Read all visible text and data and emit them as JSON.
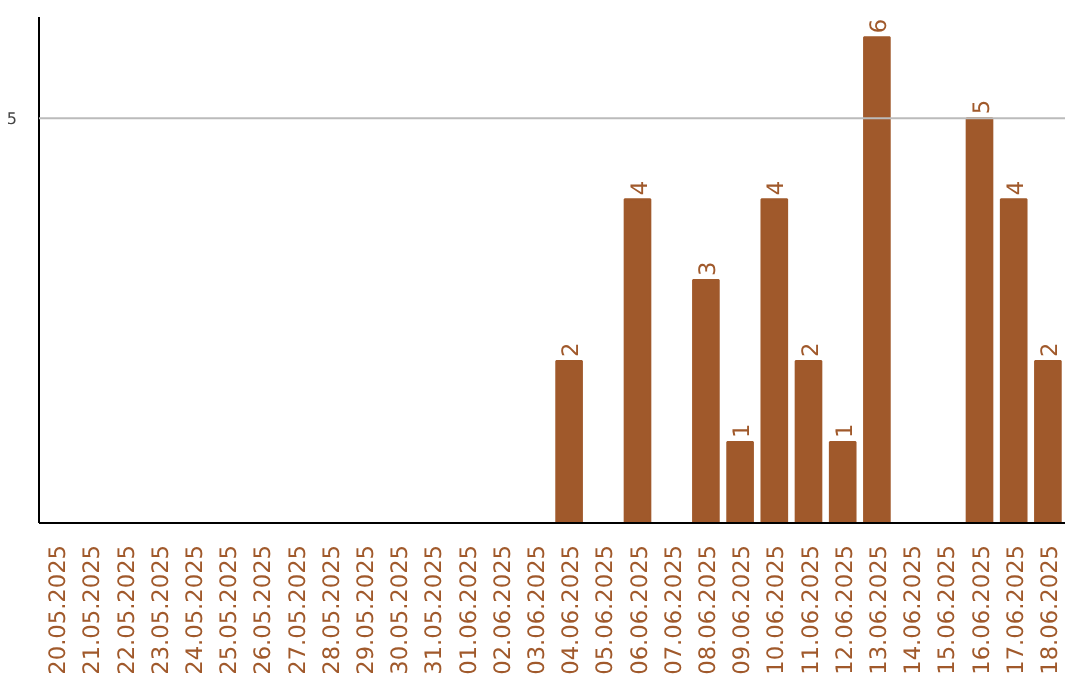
{
  "chart_data": {
    "type": "bar",
    "categories": [
      "20.05.2025",
      "21.05.2025",
      "22.05.2025",
      "23.05.2025",
      "24.05.2025",
      "25.05.2025",
      "26.05.2025",
      "27.05.2025",
      "28.05.2025",
      "29.05.2025",
      "30.05.2025",
      "31.05.2025",
      "01.06.2025",
      "02.06.2025",
      "03.06.2025",
      "04.06.2025",
      "05.06.2025",
      "06.06.2025",
      "07.06.2025",
      "08.06.2025",
      "09.06.2025",
      "10.06.2025",
      "11.06.2025",
      "12.06.2025",
      "13.06.2025",
      "14.06.2025",
      "15.06.2025",
      "16.06.2025",
      "17.06.2025",
      "18.06.2025"
    ],
    "values": [
      null,
      null,
      null,
      null,
      null,
      null,
      null,
      null,
      null,
      null,
      null,
      null,
      null,
      null,
      null,
      2,
      null,
      4,
      null,
      3,
      1,
      4,
      2,
      1,
      6,
      null,
      null,
      5,
      4,
      2
    ],
    "data_labels": true,
    "color": "#a0592b",
    "ylim": [
      0,
      6.25
    ],
    "ref_lines": [
      {
        "axis": "y",
        "value": 5,
        "label": "5",
        "color": "#bbbbbb"
      }
    ]
  }
}
